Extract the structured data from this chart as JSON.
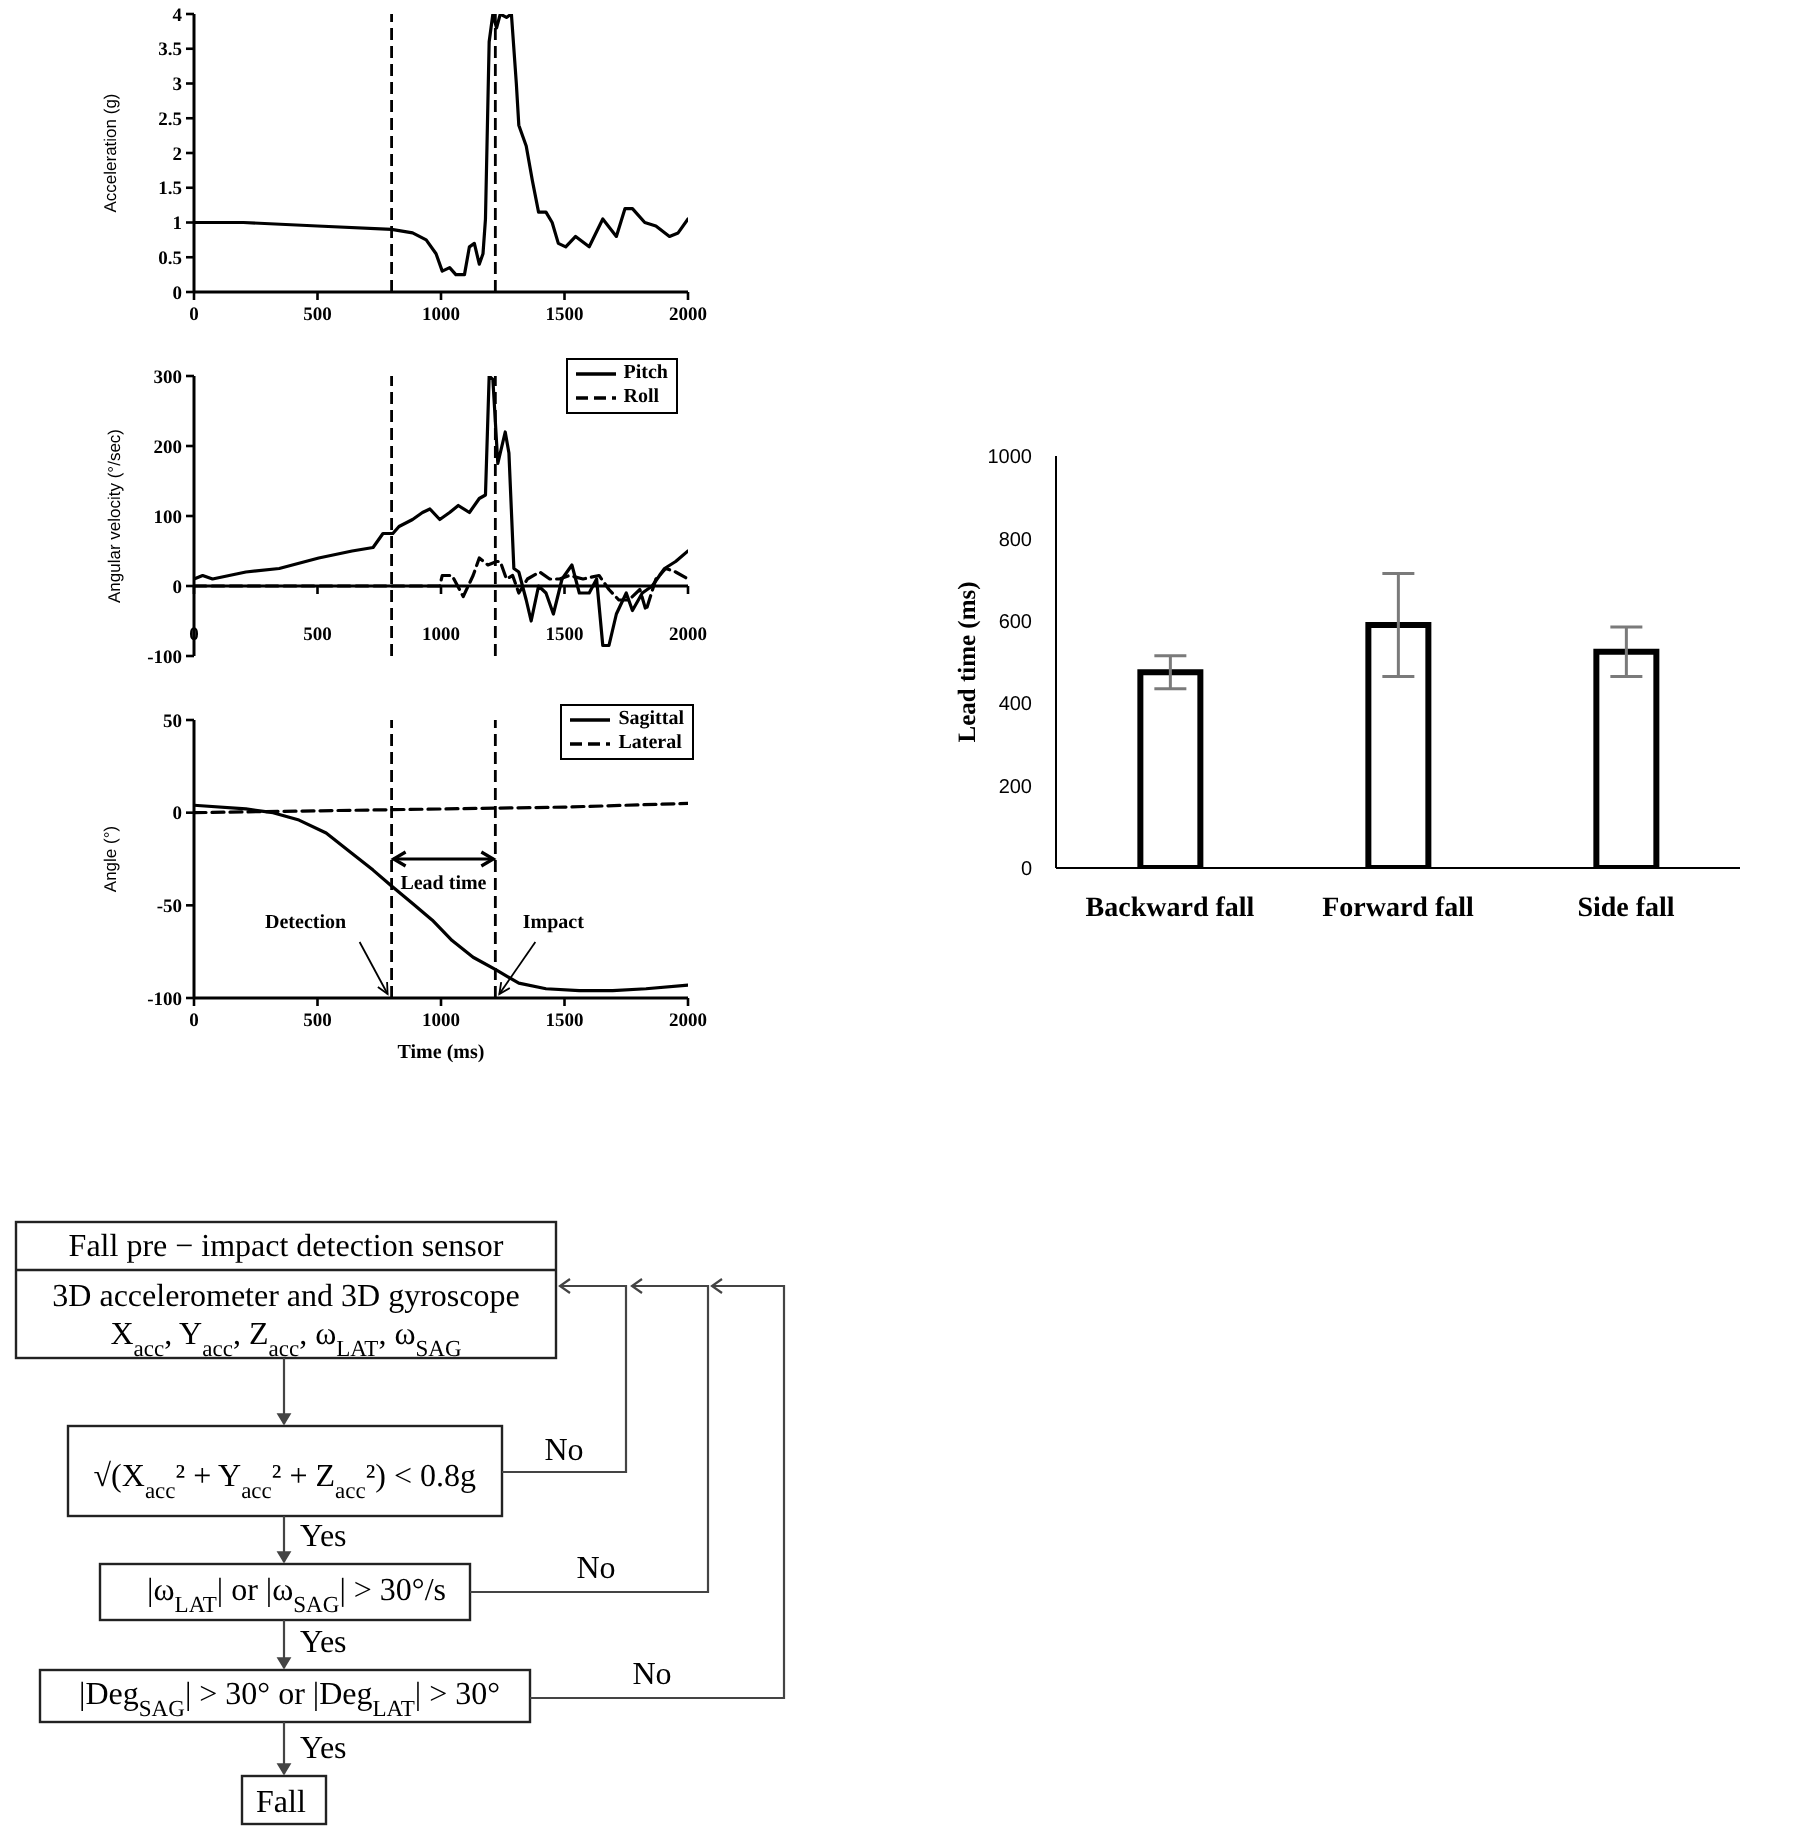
{
  "chart_data": [
    {
      "type": "line",
      "ylabel": "Acceleration (g)",
      "xlim": [
        0,
        2000
      ],
      "xticks": [
        0,
        500,
        1000,
        1500,
        2000
      ],
      "ylim": [
        0,
        4
      ],
      "yticks": [
        0,
        0.5,
        1,
        1.5,
        2,
        2.5,
        3,
        3.5,
        4
      ],
      "x": [
        0,
        200,
        500,
        800,
        885,
        940,
        980,
        1005,
        1035,
        1060,
        1095,
        1115,
        1135,
        1155,
        1170,
        1180,
        1195,
        1210,
        1225,
        1240,
        1265,
        1285,
        1305,
        1315,
        1345,
        1370,
        1395,
        1425,
        1450,
        1475,
        1505,
        1545,
        1600,
        1655,
        1710,
        1745,
        1775,
        1825,
        1870,
        1925,
        1960,
        2000
      ],
      "series": [
        {
          "color": "#000000",
          "values": [
            1,
            1,
            0.95,
            0.9,
            0.85,
            0.75,
            0.55,
            0.3,
            0.35,
            0.25,
            0.25,
            0.65,
            0.7,
            0.4,
            0.55,
            1.05,
            3.6,
            4,
            3.8,
            4,
            3.95,
            4,
            3,
            2.4,
            2.1,
            1.6,
            1.15,
            1.15,
            1,
            0.7,
            0.65,
            0.8,
            0.65,
            1.05,
            0.8,
            1.2,
            1.2,
            1,
            0.95,
            0.8,
            0.85,
            1.05
          ]
        }
      ],
      "ref_lines": [
        {
          "axis": "x",
          "value": 800,
          "line_style": "dashed"
        },
        {
          "axis": "x",
          "value": 1220,
          "line_style": "dashed"
        }
      ]
    },
    {
      "type": "line",
      "ylabel": "Angular velocity (°/sec)",
      "xlim": [
        0,
        2000
      ],
      "xticks": [
        0,
        500,
        1000,
        1500,
        2000
      ],
      "ylim": [
        -100,
        300
      ],
      "yticks": [
        -100,
        0,
        100,
        200,
        300
      ],
      "series": [
        {
          "name": "Pitch",
          "color": "#000000",
          "line_style": "solid",
          "x": [
            0,
            35,
            75,
            210,
            345,
            505,
            640,
            725,
            765,
            805,
            830,
            885,
            925,
            955,
            995,
            1035,
            1070,
            1115,
            1155,
            1180,
            1195,
            1210,
            1230,
            1260,
            1275,
            1295,
            1315,
            1345,
            1365,
            1395,
            1425,
            1455,
            1490,
            1530,
            1560,
            1600,
            1630,
            1655,
            1680,
            1710,
            1750,
            1775,
            1815,
            1855,
            1905,
            1950,
            2000
          ],
          "values": [
            10,
            15,
            10,
            20,
            25,
            40,
            50,
            55,
            75,
            75,
            85,
            95,
            105,
            110,
            95,
            105,
            115,
            105,
            125,
            130,
            300,
            295,
            175,
            220,
            190,
            25,
            20,
            -20,
            -50,
            0,
            -10,
            -40,
            10,
            30,
            -10,
            -10,
            10,
            -85,
            -85,
            -40,
            -10,
            -35,
            -10,
            0,
            25,
            35,
            50
          ]
        },
        {
          "name": "Roll",
          "color": "#000000",
          "line_style": "dashed",
          "x": [
            0,
            995,
            1005,
            1045,
            1090,
            1130,
            1155,
            1190,
            1225,
            1240,
            1265,
            1290,
            1315,
            1350,
            1400,
            1440,
            1480,
            1520,
            1575,
            1640,
            1680,
            1720,
            1760,
            1805,
            1830,
            1870,
            1910,
            1950,
            2000
          ],
          "values": [
            0,
            0,
            15,
            15,
            -15,
            15,
            40,
            30,
            35,
            35,
            10,
            15,
            -10,
            10,
            20,
            10,
            10,
            15,
            10,
            15,
            -5,
            -20,
            -20,
            -5,
            -35,
            10,
            25,
            20,
            10
          ]
        }
      ],
      "legend": "top right",
      "ref_lines": [
        {
          "axis": "x",
          "value": 800,
          "line_style": "dashed"
        },
        {
          "axis": "x",
          "value": 1220,
          "line_style": "dashed"
        }
      ]
    },
    {
      "type": "line",
      "xlabel": "Time (ms)",
      "ylabel": "Angle (°)",
      "xlim": [
        0,
        2000
      ],
      "xticks": [
        0,
        500,
        1000,
        1500,
        2000
      ],
      "ylim": [
        -100,
        50
      ],
      "yticks": [
        -100,
        -50,
        0,
        50
      ],
      "series": [
        {
          "name": "Sagittal",
          "color": "#000000",
          "line_style": "solid",
          "x": [
            0,
            210,
            320,
            425,
            535,
            640,
            725,
            795,
            885,
            965,
            1045,
            1130,
            1225,
            1315,
            1425,
            1560,
            1695,
            1830,
            2000
          ],
          "values": [
            4,
            2,
            0,
            -4,
            -11,
            -22,
            -31,
            -39,
            -49,
            -58,
            -69,
            -78,
            -85,
            -92,
            -95,
            -96,
            -96,
            -95,
            -93
          ]
        },
        {
          "name": "Lateral",
          "color": "#000000",
          "line_style": "dashed",
          "x": [
            0,
            500,
            1000,
            1500,
            2000
          ],
          "values": [
            0,
            1,
            2,
            3,
            5
          ]
        }
      ],
      "legend": "top right",
      "ref_lines": [
        {
          "axis": "x",
          "value": 800,
          "line_style": "dashed"
        },
        {
          "axis": "x",
          "value": 1220,
          "line_style": "dashed"
        }
      ],
      "annotations": [
        "Lead time",
        {
          "text": "Detection",
          "x": 800,
          "y": -100
        },
        {
          "text": "Impact",
          "x": 1220,
          "y": -100
        }
      ]
    },
    {
      "type": "bar",
      "ylabel": "Lead time (ms)",
      "categories": [
        "Backward fall",
        "Forward fall",
        "Side fall"
      ],
      "values": [
        475,
        590,
        525
      ],
      "errors": [
        40,
        125,
        60
      ],
      "color": "#ffffff",
      "ylim": [
        0,
        1000
      ],
      "yticks": [
        0,
        200,
        400,
        600,
        800,
        1000
      ]
    },
    {
      "type": "other",
      "annotations": [
        "Fall pre − impact detection sensor",
        "3D accelerometer and 3D gyroscope",
        "X$_{acc}$, Y$_{acc}$, Z$_{acc}$, ω$_{LAT}$, ω$_{SAG}$",
        "√(X$_{acc}$² + Y$_{acc}$² + Z$_{acc}$²) < 0.8g",
        "No",
        "Yes",
        "|ω$_{LAT}$| or |ω$_{SAG}$| > 30°/s",
        "No",
        "Yes",
        "|Deg$_{SAG}$| > 30° or |Deg$_{LAT}$| > 30°",
        "No",
        "Yes",
        "Fall"
      ]
    }
  ]
}
